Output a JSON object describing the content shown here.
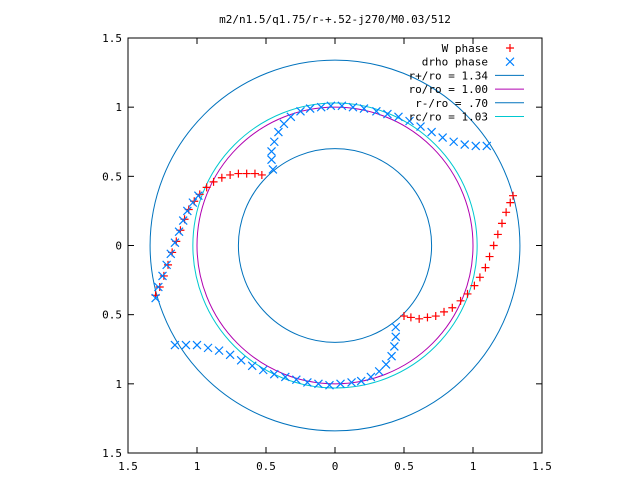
{
  "chart_data": {
    "type": "scatter",
    "title": "m2/n1.5/q1.75/r-+.52-j270/M0.03/512",
    "xlabel": "",
    "ylabel": "",
    "xlim": [
      -1.5,
      1.5
    ],
    "ylim": [
      -1.5,
      1.5
    ],
    "xtick_values": [
      -1.5,
      -1,
      -0.5,
      0,
      0.5,
      1,
      1.5
    ],
    "xtick_labels": [
      "1.5",
      "1",
      "0.5",
      "0",
      "0.5",
      "1",
      "1.5"
    ],
    "ytick_values": [
      1.5,
      1,
      0.5,
      0,
      -0.5,
      -1,
      -1.5
    ],
    "ytick_labels": [
      "1.5",
      "1",
      "0.5",
      "0",
      "0.5",
      "1",
      "1.5"
    ],
    "grid": false,
    "legend_position": "top-right",
    "series": [
      {
        "name": "W phase",
        "marker": "plus",
        "color": "#ff0000",
        "points": [
          [
            -1.3,
            -0.36
          ],
          [
            -1.27,
            -0.3
          ],
          [
            -1.24,
            -0.22
          ],
          [
            -1.21,
            -0.14
          ],
          [
            -1.18,
            -0.05
          ],
          [
            -1.15,
            0.03
          ],
          [
            -1.12,
            0.11
          ],
          [
            -1.09,
            0.19
          ],
          [
            -1.06,
            0.26
          ],
          [
            -1.02,
            0.32
          ],
          [
            -0.98,
            0.37
          ],
          [
            -0.93,
            0.42
          ],
          [
            -0.88,
            0.46
          ],
          [
            -0.82,
            0.49
          ],
          [
            -0.76,
            0.51
          ],
          [
            -0.7,
            0.52
          ],
          [
            -0.64,
            0.52
          ],
          [
            -0.58,
            0.52
          ],
          [
            -0.53,
            0.51
          ],
          [
            0.5,
            -0.51
          ],
          [
            0.55,
            -0.52
          ],
          [
            0.61,
            -0.53
          ],
          [
            0.67,
            -0.52
          ],
          [
            0.73,
            -0.51
          ],
          [
            0.79,
            -0.48
          ],
          [
            0.85,
            -0.45
          ],
          [
            0.91,
            -0.4
          ],
          [
            0.96,
            -0.35
          ],
          [
            1.01,
            -0.29
          ],
          [
            1.05,
            -0.23
          ],
          [
            1.09,
            -0.16
          ],
          [
            1.12,
            -0.08
          ],
          [
            1.15,
            0.0
          ],
          [
            1.18,
            0.08
          ],
          [
            1.21,
            0.16
          ],
          [
            1.24,
            0.24
          ],
          [
            1.27,
            0.31
          ],
          [
            1.29,
            0.36
          ]
        ]
      },
      {
        "name": "drho phase",
        "marker": "cross",
        "color": "#0080ff",
        "points": [
          [
            -1.3,
            -0.38
          ],
          [
            -1.28,
            -0.3
          ],
          [
            -1.25,
            -0.22
          ],
          [
            -1.22,
            -0.14
          ],
          [
            -1.19,
            -0.06
          ],
          [
            -1.16,
            0.02
          ],
          [
            -1.13,
            0.1
          ],
          [
            -1.1,
            0.18
          ],
          [
            -1.07,
            0.25
          ],
          [
            -1.03,
            0.31
          ],
          [
            -0.99,
            0.36
          ],
          [
            -0.45,
            0.55
          ],
          [
            -0.46,
            0.62
          ],
          [
            -0.46,
            0.68
          ],
          [
            -0.44,
            0.75
          ],
          [
            -0.41,
            0.82
          ],
          [
            -0.37,
            0.88
          ],
          [
            -0.32,
            0.93
          ],
          [
            -0.25,
            0.97
          ],
          [
            -0.18,
            0.99
          ],
          [
            -0.1,
            1.0
          ],
          [
            -0.03,
            1.01
          ],
          [
            0.05,
            1.01
          ],
          [
            0.13,
            1.0
          ],
          [
            0.21,
            0.99
          ],
          [
            0.3,
            0.97
          ],
          [
            0.38,
            0.95
          ],
          [
            0.46,
            0.93
          ],
          [
            0.54,
            0.9
          ],
          [
            0.62,
            0.86
          ],
          [
            0.7,
            0.82
          ],
          [
            0.78,
            0.78
          ],
          [
            0.86,
            0.75
          ],
          [
            0.94,
            0.73
          ],
          [
            1.02,
            0.72
          ],
          [
            1.1,
            0.72
          ],
          [
            -1.16,
            -0.72
          ],
          [
            -1.08,
            -0.72
          ],
          [
            -1.0,
            -0.72
          ],
          [
            -0.92,
            -0.74
          ],
          [
            -0.84,
            -0.76
          ],
          [
            -0.76,
            -0.79
          ],
          [
            -0.68,
            -0.83
          ],
          [
            -0.6,
            -0.87
          ],
          [
            -0.52,
            -0.9
          ],
          [
            -0.44,
            -0.93
          ],
          [
            -0.36,
            -0.95
          ],
          [
            -0.28,
            -0.97
          ],
          [
            -0.2,
            -0.99
          ],
          [
            -0.12,
            -1.0
          ],
          [
            -0.04,
            -1.01
          ],
          [
            0.04,
            -1.0
          ],
          [
            0.12,
            -0.99
          ],
          [
            0.19,
            -0.98
          ],
          [
            0.26,
            -0.95
          ],
          [
            0.32,
            -0.91
          ],
          [
            0.37,
            -0.86
          ],
          [
            0.41,
            -0.8
          ],
          [
            0.43,
            -0.73
          ],
          [
            0.44,
            -0.66
          ],
          [
            0.44,
            -0.59
          ]
        ]
      },
      {
        "name": "r+/ro = 1.34",
        "shape": "circle",
        "radius": 1.34,
        "color": "#0072bd"
      },
      {
        "name": "ro/ro = 1.00",
        "shape": "circle",
        "radius": 1.0,
        "color": "#b000b0"
      },
      {
        "name": "r-/ro = .70",
        "shape": "circle",
        "radius": 0.7,
        "color": "#0072bd"
      },
      {
        "name": "rc/ro = 1.03",
        "shape": "circle",
        "radius": 1.03,
        "color": "#00c8d0"
      }
    ]
  }
}
